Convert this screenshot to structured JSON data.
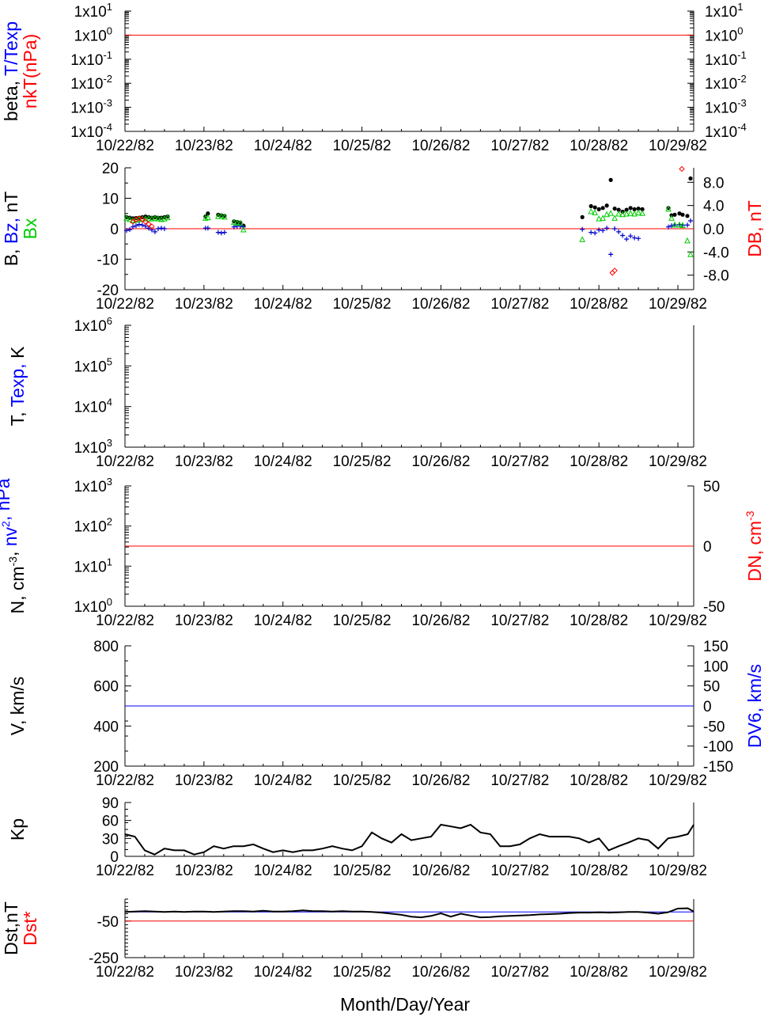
{
  "x_axis": {
    "tick_labels": [
      "10/22/82",
      "10/23/82",
      "10/24/82",
      "10/25/82",
      "10/26/82",
      "10/27/82",
      "10/28/82",
      "10/29/82"
    ],
    "label": "Month/Day/Year"
  },
  "chart_data": [
    {
      "id": "beta",
      "type": "line",
      "ylabel_parts": [
        {
          "text": "beta, ",
          "color": "#000000"
        },
        {
          "text": "T/Texp",
          "color": "#0000ff"
        }
      ],
      "ylabel2_parts": [
        {
          "text": "nkT(nPa)",
          "color": "#ff0000"
        }
      ],
      "yscale": "log",
      "ylim_exp": [
        -4,
        1
      ],
      "left_ticks": [
        {
          "value": 1,
          "label": "1x10",
          "sup": "1"
        },
        {
          "value": 0,
          "label": "1x10",
          "sup": "0"
        },
        {
          "value": -1,
          "label": "1x10",
          "sup": "-1"
        },
        {
          "value": -2,
          "label": "1x10",
          "sup": "-2"
        },
        {
          "value": -3,
          "label": "1x10",
          "sup": "-3"
        },
        {
          "value": -4,
          "label": "1x10",
          "sup": "-4"
        }
      ],
      "right_ticks_mirror": true,
      "reference_line": {
        "value_exp": 0,
        "color": "#ff0000"
      }
    },
    {
      "id": "magnetic",
      "type": "scatter",
      "ylabel_parts": [
        {
          "text": "B, ",
          "color": "#000000"
        },
        {
          "text": "Bz, ",
          "color": "#0000ff"
        },
        {
          "text": "nT",
          "color": "#000000"
        }
      ],
      "ylabel2_parts": [
        {
          "text": "Bx",
          "color": "#00cc00"
        }
      ],
      "right_label": {
        "text": "DB, nT",
        "color": "#ff0000"
      },
      "ylim": [
        -20,
        20
      ],
      "left_ticks": [
        "20",
        "10",
        "0",
        "-10",
        "-20"
      ],
      "left_tick_values": [
        20,
        10,
        0,
        -10,
        -20
      ],
      "rlim": [
        -10.5,
        10.5
      ],
      "right_ticks": [
        "8.0",
        "4.0",
        "0.0",
        "-4.0",
        "-8.0"
      ],
      "right_tick_values": [
        8,
        4,
        0,
        -4,
        -8
      ],
      "reference_line": {
        "value": 0,
        "color": "#ff0000"
      },
      "series": [
        {
          "name": "B",
          "color": "#000000",
          "marker": "dot",
          "x": [
            0.02,
            0.06,
            0.1,
            0.14,
            0.18,
            0.22,
            0.26,
            0.3,
            0.34,
            0.38,
            0.42,
            0.46,
            0.5,
            0.54,
            1.02,
            1.05,
            1.18,
            1.22,
            1.26,
            1.38,
            1.42,
            1.46,
            1.5,
            5.79,
            5.9,
            5.95,
            6.0,
            6.05,
            6.1,
            6.15,
            6.2,
            6.25,
            6.3,
            6.35,
            6.4,
            6.45,
            6.5,
            6.55,
            6.88,
            6.92,
            6.96,
            7.02,
            7.06,
            7.12,
            7.16
          ],
          "values": [
            3.8,
            3.6,
            3.4,
            3.5,
            3.6,
            3.8,
            4,
            3.8,
            3.6,
            3.8,
            3.6,
            3.6,
            3.8,
            4,
            4,
            5,
            4.6,
            4.4,
            4.2,
            2.4,
            2.2,
            2,
            1,
            3.8,
            7.4,
            7,
            6.4,
            6.8,
            7.6,
            16,
            6.6,
            6.2,
            5.6,
            6.2,
            6.8,
            6.4,
            6.6,
            6.4,
            6.8,
            4.4,
            4.6,
            5,
            4.6,
            4.2,
            16.5
          ]
        },
        {
          "name": "Bz",
          "color": "#0000cc",
          "marker": "plus",
          "x": [
            0.02,
            0.06,
            0.1,
            0.14,
            0.18,
            0.22,
            0.26,
            0.3,
            0.34,
            0.38,
            0.42,
            0.46,
            0.5,
            1.02,
            1.05,
            1.18,
            1.22,
            1.26,
            1.38,
            1.42,
            1.46,
            1.5,
            5.79,
            5.9,
            5.95,
            6.0,
            6.05,
            6.1,
            6.15,
            6.2,
            6.25,
            6.3,
            6.35,
            6.4,
            6.45,
            6.5,
            6.88,
            6.92,
            6.96,
            7.02,
            7.06,
            7.12,
            7.16
          ],
          "values": [
            -0.6,
            -0.3,
            0.6,
            1,
            1.4,
            1.2,
            0.8,
            0.2,
            -0.4,
            -1,
            0,
            0.2,
            0,
            0.2,
            0.2,
            -1.2,
            -1.4,
            -1.2,
            0.6,
            0.8,
            0.8,
            0.6,
            -0.2,
            -1.2,
            -1.4,
            -0.4,
            -0.6,
            0.2,
            -8.4,
            0,
            -1,
            -2.2,
            -3.4,
            -2.4,
            -3,
            -3.2,
            0.6,
            1,
            1.2,
            1.4,
            1.2,
            1.2,
            2.6
          ]
        },
        {
          "name": "Bx",
          "color": "#00cc00",
          "marker": "triangle",
          "x": [
            0.02,
            0.06,
            0.1,
            0.14,
            0.18,
            0.22,
            0.26,
            0.3,
            0.34,
            0.38,
            0.42,
            0.46,
            0.5,
            0.54,
            1.02,
            1.05,
            1.18,
            1.22,
            1.26,
            1.38,
            1.42,
            1.46,
            1.5,
            5.79,
            5.9,
            5.95,
            6.0,
            6.05,
            6.1,
            6.15,
            6.2,
            6.25,
            6.3,
            6.35,
            6.4,
            6.45,
            6.5,
            6.55,
            6.88,
            6.92,
            6.96,
            7.02,
            7.06,
            7.12,
            7.16
          ],
          "values": [
            3.4,
            3,
            2.6,
            2.8,
            3,
            3.2,
            3.2,
            3.2,
            3.2,
            3.4,
            3.2,
            3,
            3.2,
            3.6,
            3.4,
            3.6,
            4,
            4,
            3.8,
            2,
            1.8,
            1.8,
            -0.4,
            -3.6,
            5.6,
            5.2,
            3.2,
            3.4,
            4.6,
            5,
            3.4,
            4.8,
            4.6,
            4.8,
            5,
            4.8,
            5.2,
            5,
            6.4,
            3.4,
            1.2,
            1.2,
            1,
            -4,
            -8.5
          ]
        },
        {
          "name": "DB",
          "color": "#ff0000",
          "marker": "diamond",
          "axis": "right",
          "x": [
            0.1,
            0.14,
            0.18,
            0.22,
            0.26,
            0.3,
            0.34,
            6.17,
            6.2,
            7.05
          ],
          "values": [
            1.2,
            1.6,
            1.8,
            1.6,
            1.2,
            0.8,
            0.4,
            -7.6,
            -7.2,
            10.3
          ]
        }
      ]
    },
    {
      "id": "temperature",
      "type": "line",
      "ylabel_parts": [
        {
          "text": "T, ",
          "color": "#000000"
        },
        {
          "text": "Texp, ",
          "color": "#0000ff"
        },
        {
          "text": "K",
          "color": "#000000"
        }
      ],
      "yscale": "log",
      "ylim_exp": [
        3,
        6
      ],
      "left_ticks": [
        {
          "value": 6,
          "label": "1x10",
          "sup": "6"
        },
        {
          "value": 5,
          "label": "1x10",
          "sup": "5"
        },
        {
          "value": 4,
          "label": "1x10",
          "sup": "4"
        },
        {
          "value": 3,
          "label": "1x10",
          "sup": "3"
        }
      ]
    },
    {
      "id": "density",
      "type": "line",
      "ylabel_parts": [
        {
          "text": "N, cm",
          "color": "#000000"
        },
        {
          "text": "-3",
          "color": "#000000",
          "sup": true
        },
        {
          "text": ", ",
          "color": "#000000"
        },
        {
          "text": "nv",
          "color": "#0000ff"
        },
        {
          "text": "2",
          "color": "#0000ff",
          "sup": true
        },
        {
          "text": ", nPa",
          "color": "#0000ff"
        }
      ],
      "right_label_parts": [
        {
          "text": "DN, cm",
          "color": "#ff0000"
        },
        {
          "text": "-3",
          "color": "#ff0000",
          "sup": true
        }
      ],
      "yscale": "log",
      "ylim_exp": [
        0,
        3
      ],
      "left_ticks": [
        {
          "value": 3,
          "label": "1x10",
          "sup": "3"
        },
        {
          "value": 2,
          "label": "1x10",
          "sup": "2"
        },
        {
          "value": 1,
          "label": "1x10",
          "sup": "1"
        },
        {
          "value": 0,
          "label": "1x10",
          "sup": "0"
        }
      ],
      "rlim": [
        -50,
        50
      ],
      "right_ticks": [
        "50",
        "0",
        "-50"
      ],
      "right_tick_values": [
        50,
        0,
        -50
      ],
      "reference_line": {
        "value": 0,
        "axis": "right",
        "color": "#ff0000"
      }
    },
    {
      "id": "velocity",
      "type": "line",
      "ylabel_parts": [
        {
          "text": "V, km/s",
          "color": "#000000"
        }
      ],
      "right_label": {
        "text": "DV6, km/s",
        "color": "#0000ff"
      },
      "ylim": [
        200,
        800
      ],
      "left_ticks": [
        "800",
        "600",
        "400",
        "200"
      ],
      "left_tick_values": [
        800,
        600,
        400,
        200
      ],
      "rlim": [
        -150,
        150
      ],
      "right_ticks": [
        "150",
        "100",
        "50",
        "0",
        "-50",
        "-100",
        "-150"
      ],
      "right_tick_values": [
        150,
        100,
        50,
        0,
        -50,
        -100,
        -150
      ],
      "reference_line": {
        "value": 0,
        "axis": "right",
        "color": "#0000ff"
      }
    },
    {
      "id": "kp",
      "type": "line",
      "ylabel_parts": [
        {
          "text": "Kp",
          "color": "#000000"
        }
      ],
      "ylim": [
        0,
        90
      ],
      "left_ticks": [
        "90",
        "60",
        "30",
        "0"
      ],
      "left_tick_values": [
        90,
        60,
        30,
        0
      ],
      "series": [
        {
          "name": "Kp",
          "color": "#000000",
          "x": [
            0,
            0.125,
            0.25,
            0.375,
            0.5,
            0.625,
            0.75,
            0.875,
            1,
            1.125,
            1.25,
            1.375,
            1.5,
            1.625,
            1.75,
            1.875,
            2,
            2.125,
            2.25,
            2.375,
            2.5,
            2.625,
            2.75,
            2.875,
            3,
            3.125,
            3.25,
            3.375,
            3.5,
            3.625,
            3.75,
            3.875,
            4,
            4.125,
            4.25,
            4.375,
            4.5,
            4.625,
            4.75,
            4.875,
            5,
            5.125,
            5.25,
            5.375,
            5.5,
            5.625,
            5.75,
            5.875,
            6,
            6.125,
            6.25,
            6.375,
            6.5,
            6.625,
            6.75,
            6.875,
            7,
            7.125,
            7.2
          ],
          "values": [
            37,
            33,
            10,
            3,
            13,
            10,
            10,
            3,
            7,
            17,
            13,
            17,
            17,
            20,
            13,
            7,
            10,
            7,
            10,
            10,
            13,
            17,
            13,
            10,
            17,
            40,
            30,
            23,
            37,
            27,
            30,
            33,
            53,
            50,
            47,
            53,
            40,
            37,
            17,
            17,
            20,
            30,
            37,
            33,
            33,
            33,
            30,
            23,
            30,
            10,
            17,
            23,
            30,
            27,
            13,
            30,
            33,
            37,
            53
          ]
        }
      ]
    },
    {
      "id": "dst",
      "type": "line",
      "ylabel_parts": [
        {
          "text": "Dst,nT",
          "color": "#000000"
        }
      ],
      "ylabel2_parts": [
        {
          "text": "Dst*",
          "color": "#ff0000"
        }
      ],
      "ylim": [
        -250,
        70
      ],
      "left_ticks": [
        "-50",
        "-250"
      ],
      "left_tick_values": [
        -50,
        -250
      ],
      "reference_lines": [
        {
          "value": 0,
          "color": "#0000ff"
        },
        {
          "value": -50,
          "color": "#ff0000"
        }
      ],
      "series": [
        {
          "name": "Dst",
          "color": "#000000",
          "x": [
            0,
            0.125,
            0.25,
            0.375,
            0.5,
            0.625,
            0.75,
            0.875,
            1,
            1.125,
            1.25,
            1.375,
            1.5,
            1.625,
            1.75,
            1.875,
            2,
            2.125,
            2.25,
            2.375,
            2.5,
            2.625,
            2.75,
            2.875,
            3,
            3.125,
            3.25,
            3.375,
            3.5,
            3.625,
            3.75,
            3.875,
            4,
            4.125,
            4.25,
            4.375,
            4.5,
            4.625,
            4.75,
            4.875,
            5,
            5.125,
            5.25,
            5.375,
            5.5,
            5.625,
            5.75,
            5.875,
            6,
            6.125,
            6.25,
            6.375,
            6.5,
            6.625,
            6.75,
            6.875,
            7,
            7.125,
            7.2
          ],
          "values": [
            0,
            2,
            4,
            2,
            0,
            2,
            0,
            2,
            2,
            0,
            2,
            4,
            4,
            2,
            6,
            2,
            2,
            4,
            8,
            4,
            4,
            2,
            4,
            2,
            2,
            0,
            -4,
            -10,
            -16,
            -26,
            -30,
            -22,
            -8,
            -26,
            -10,
            -20,
            -30,
            -28,
            -24,
            -22,
            -20,
            -18,
            -14,
            -12,
            -10,
            -6,
            -4,
            -4,
            -2,
            -4,
            -2,
            0,
            0,
            -4,
            -10,
            -2,
            18,
            20,
            2
          ]
        }
      ]
    }
  ]
}
